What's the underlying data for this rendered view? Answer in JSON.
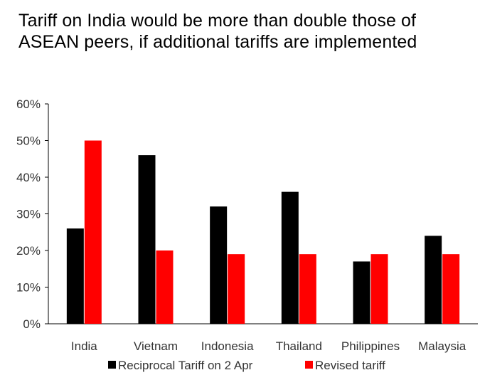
{
  "chart_data": {
    "type": "bar",
    "title": "Tariff on India would be more than double those of ASEAN peers, if additional tariffs are implemented",
    "xlabel": "",
    "ylabel": "",
    "categories": [
      "India",
      "Vietnam",
      "Indonesia",
      "Thailand",
      "Philippines",
      "Malaysia"
    ],
    "series": [
      {
        "name": "Reciprocal Tariff on 2 Apr",
        "color": "#000000",
        "values": [
          26,
          46,
          32,
          36,
          17,
          24
        ]
      },
      {
        "name": "Revised tariff",
        "color": "#ff0000",
        "values": [
          50,
          20,
          19,
          19,
          19,
          19
        ]
      }
    ],
    "ylim": [
      0,
      60
    ],
    "yticks": [
      "0%",
      "10%",
      "20%",
      "30%",
      "40%",
      "50%",
      "60%"
    ],
    "grid": false,
    "legend_position": "bottom"
  }
}
